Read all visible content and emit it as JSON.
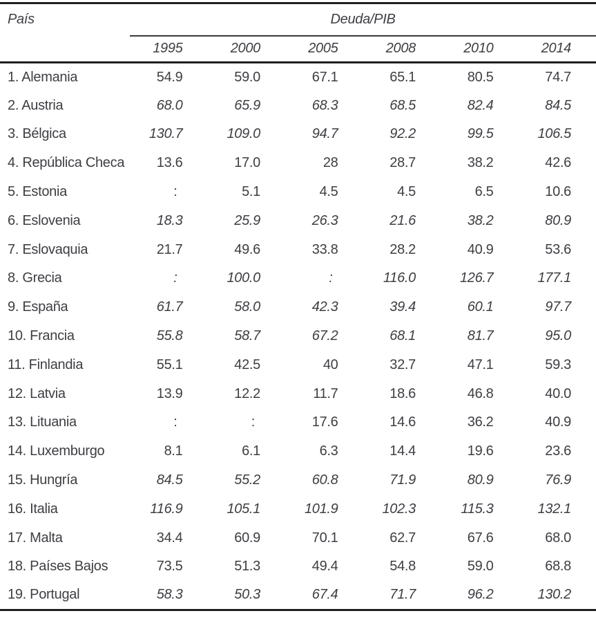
{
  "colors": {
    "text": "#3e3e43",
    "rule_heavy": "#1f1f1f",
    "rule_light": "#3a3a3a",
    "background": "#ffffff"
  },
  "chart_data": {
    "type": "table",
    "country_header": "País",
    "group_header": "Deuda/PIB",
    "columns": [
      "1995",
      "2000",
      "2005",
      "2008",
      "2010",
      "2014"
    ],
    "missing_value_symbol": ":",
    "rows": [
      {
        "label": "1. Alemania",
        "italic": false,
        "values": [
          "54.9",
          "59.0",
          "67.1",
          "65.1",
          "80.5",
          "74.7"
        ]
      },
      {
        "label": "2. Austria",
        "italic": true,
        "values": [
          "68.0",
          "65.9",
          "68.3",
          "68.5",
          "82.4",
          "84.5"
        ]
      },
      {
        "label": "3. Bélgica",
        "italic": true,
        "values": [
          "130.7",
          "109.0",
          "94.7",
          "92.2",
          "99.5",
          "106.5"
        ]
      },
      {
        "label": "4. República Checa",
        "italic": false,
        "values": [
          "13.6",
          "17.0",
          "28",
          "28.7",
          "38.2",
          "42.6"
        ]
      },
      {
        "label": "5. Estonia",
        "italic": false,
        "values": [
          ":",
          "5.1",
          "4.5",
          "4.5",
          "6.5",
          "10.6"
        ]
      },
      {
        "label": "6. Eslovenia",
        "italic": true,
        "values": [
          "18.3",
          "25.9",
          "26.3",
          "21.6",
          "38.2",
          "80.9"
        ]
      },
      {
        "label": "7. Eslovaquia",
        "italic": false,
        "values": [
          "21.7",
          "49.6",
          "33.8",
          "28.2",
          "40.9",
          "53.6"
        ]
      },
      {
        "label": "8. Grecia",
        "italic": true,
        "values": [
          ":",
          "100.0",
          ":",
          "116.0",
          "126.7",
          "177.1"
        ]
      },
      {
        "label": "9. España",
        "italic": true,
        "values": [
          "61.7",
          "58.0",
          "42.3",
          "39.4",
          "60.1",
          "97.7"
        ]
      },
      {
        "label": "10. Francia",
        "italic": true,
        "values": [
          "55.8",
          "58.7",
          "67.2",
          "68.1",
          "81.7",
          "95.0"
        ]
      },
      {
        "label": "11. Finlandia",
        "italic": false,
        "values": [
          "55.1",
          "42.5",
          "40",
          "32.7",
          "47.1",
          "59.3"
        ]
      },
      {
        "label": "12. Latvia",
        "italic": false,
        "values": [
          "13.9",
          "12.2",
          "11.7",
          "18.6",
          "46.8",
          "40.0"
        ]
      },
      {
        "label": "13. Lituania",
        "italic": false,
        "values": [
          ":",
          ":",
          "17.6",
          "14.6",
          "36.2",
          "40.9"
        ]
      },
      {
        "label": "14. Luxemburgo",
        "italic": false,
        "values": [
          "8.1",
          "6.1",
          "6.3",
          "14.4",
          "19.6",
          "23.6"
        ]
      },
      {
        "label": "15. Hungría",
        "italic": true,
        "values": [
          "84.5",
          "55.2",
          "60.8",
          "71.9",
          "80.9",
          "76.9"
        ]
      },
      {
        "label": "16. Italia",
        "italic": true,
        "values": [
          "116.9",
          "105.1",
          "101.9",
          "102.3",
          "115.3",
          "132.1"
        ]
      },
      {
        "label": "17. Malta",
        "italic": false,
        "values": [
          "34.4",
          "60.9",
          "70.1",
          "62.7",
          "67.6",
          "68.0"
        ]
      },
      {
        "label": "18. Países Bajos",
        "italic": false,
        "values": [
          "73.5",
          "51.3",
          "49.4",
          "54.8",
          "59.0",
          "68.8"
        ]
      },
      {
        "label": "19. Portugal",
        "italic": true,
        "values": [
          "58.3",
          "50.3",
          "67.4",
          "71.7",
          "96.2",
          "130.2"
        ]
      }
    ]
  }
}
